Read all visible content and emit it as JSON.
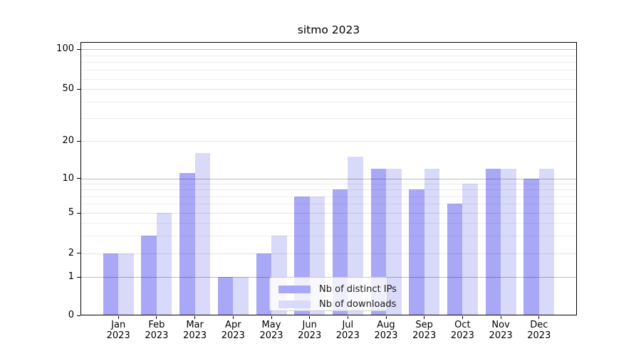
{
  "chart_data": {
    "type": "bar",
    "title": "sitmo 2023",
    "categories": [
      "Jan",
      "Feb",
      "Mar",
      "Apr",
      "May",
      "Jun",
      "Jul",
      "Aug",
      "Sep",
      "Oct",
      "Nov",
      "Dec"
    ],
    "year_label": "2023",
    "series": [
      {
        "name": "Nb of distinct IPs",
        "color": "#a8a8f6",
        "values": [
          2,
          3,
          11,
          1,
          2,
          7,
          8,
          12,
          8,
          6,
          12,
          10
        ]
      },
      {
        "name": "Nb of downloads",
        "color": "#d9d9f9",
        "values": [
          2,
          5,
          16,
          1,
          3,
          7,
          15,
          12,
          12,
          9,
          12,
          12
        ]
      }
    ],
    "xlabel": "",
    "ylabel": "",
    "yscale": "symlog",
    "ylim": [
      0,
      110
    ],
    "yticks": [
      0,
      1,
      2,
      5,
      10,
      20,
      50,
      100
    ],
    "minor_yticks": [
      3,
      4,
      6,
      7,
      8,
      9,
      30,
      40,
      60,
      70,
      80,
      90
    ],
    "grid": true,
    "legend_position": "lower center"
  }
}
